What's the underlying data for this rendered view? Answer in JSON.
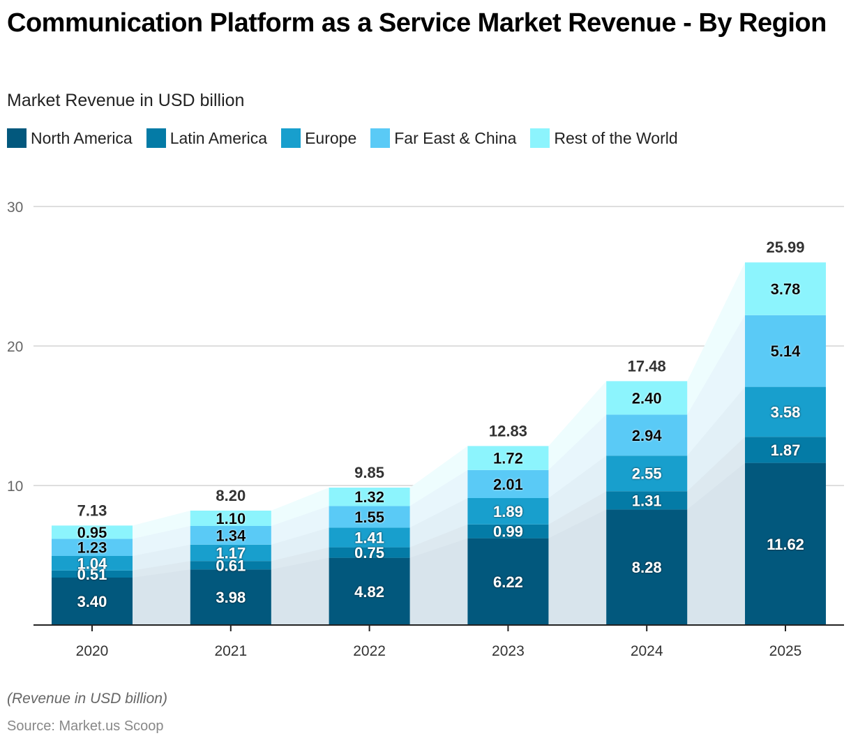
{
  "chart_data": {
    "type": "bar",
    "stacked": true,
    "title": "Communication Platform as a Service Market Revenue - By Region",
    "subtitle": "Market Revenue in USD billion",
    "xlabel": "",
    "ylabel": "",
    "ylim": [
      0,
      30
    ],
    "yticks": [
      10,
      20,
      30
    ],
    "grid": true,
    "legend_position": "top-left",
    "categories": [
      "2020",
      "2021",
      "2022",
      "2023",
      "2024",
      "2025"
    ],
    "series": [
      {
        "name": "North America",
        "color": "#02587d",
        "label_color": "#ffffff",
        "values": [
          3.4,
          3.98,
          4.82,
          6.22,
          8.28,
          11.62
        ]
      },
      {
        "name": "Latin America",
        "color": "#047ba6",
        "label_color": "#ffffff",
        "values": [
          0.51,
          0.61,
          0.75,
          0.99,
          1.31,
          1.87
        ]
      },
      {
        "name": "Europe",
        "color": "#189fcd",
        "label_color": "#ffffff",
        "values": [
          1.04,
          1.17,
          1.41,
          1.89,
          2.55,
          3.58
        ]
      },
      {
        "name": "Far East & China",
        "color": "#5acaf6",
        "label_color": "#000000",
        "values": [
          1.23,
          1.34,
          1.55,
          2.01,
          2.94,
          5.14
        ]
      },
      {
        "name": "Rest of the World",
        "color": "#8cf4fd",
        "label_color": "#000000",
        "values": [
          0.95,
          1.1,
          1.32,
          1.72,
          2.4,
          3.78
        ]
      }
    ],
    "totals": [
      "7.13",
      "8.20",
      "9.85",
      "12.83",
      "17.48",
      "25.99"
    ],
    "value_labels": [
      [
        "3.40",
        "3.98",
        "4.82",
        "6.22",
        "8.28",
        "11.62"
      ],
      [
        "0.51",
        "0.61",
        "0.75",
        "0.99",
        "1.31",
        "1.87"
      ],
      [
        "1.04",
        "1.17",
        "1.41",
        "1.89",
        "2.55",
        "3.58"
      ],
      [
        "1.23",
        "1.34",
        "1.55",
        "2.01",
        "2.94",
        "5.14"
      ],
      [
        "0.95",
        "1.10",
        "1.32",
        "1.72",
        "2.40",
        "3.78"
      ]
    ]
  },
  "footer": {
    "note": "(Revenue in USD billion)",
    "source": "Source: Market.us Scoop"
  }
}
